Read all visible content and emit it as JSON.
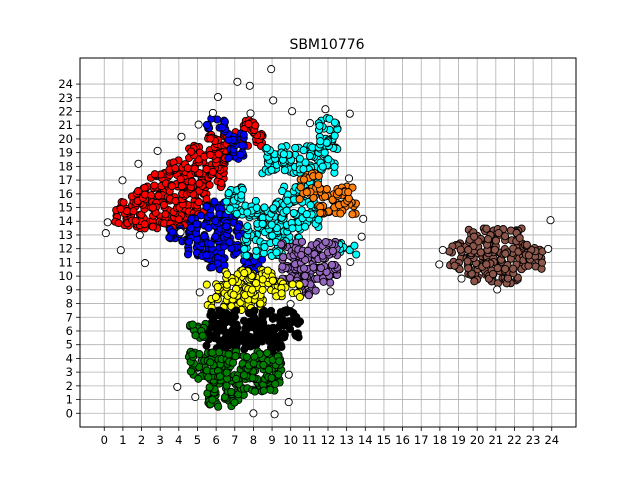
{
  "chart_data": {
    "type": "scatter",
    "title": "SBM10776",
    "xlabel": "",
    "ylabel": "",
    "xlim": [
      -1.3,
      25.3
    ],
    "ylim": [
      -1.0,
      25.9
    ],
    "xticks": [
      0,
      1,
      2,
      3,
      4,
      5,
      6,
      7,
      8,
      9,
      10,
      11,
      12,
      13,
      14,
      15,
      16,
      17,
      18,
      19,
      20,
      21,
      22,
      23,
      24
    ],
    "yticks": [
      0,
      1,
      2,
      3,
      4,
      5,
      6,
      7,
      8,
      9,
      10,
      11,
      12,
      13,
      14,
      15,
      16,
      17,
      18,
      19,
      20,
      21,
      22,
      23,
      24
    ],
    "grid": true,
    "legend": "none",
    "marker_edge_color": "#000000",
    "clusters": [
      {
        "color": "#ff0000",
        "cells": [
          [
            1,
            14
          ],
          [
            1,
            15
          ],
          [
            2,
            14
          ],
          [
            2,
            15
          ],
          [
            2,
            16
          ],
          [
            3,
            14
          ],
          [
            3,
            15
          ],
          [
            3,
            16
          ],
          [
            3,
            17
          ],
          [
            4,
            14
          ],
          [
            4,
            15
          ],
          [
            4,
            16
          ],
          [
            4,
            17
          ],
          [
            4,
            18
          ],
          [
            5,
            15
          ],
          [
            5,
            16
          ],
          [
            5,
            17
          ],
          [
            5,
            18
          ],
          [
            5,
            19
          ],
          [
            6,
            17
          ],
          [
            6,
            18
          ],
          [
            6,
            19
          ],
          [
            6,
            20
          ],
          [
            7,
            20
          ],
          [
            8,
            20
          ],
          [
            8,
            21
          ]
        ]
      },
      {
        "color": "#0000ff",
        "cells": [
          [
            4,
            13
          ],
          [
            5,
            12
          ],
          [
            5,
            13
          ],
          [
            5,
            14
          ],
          [
            6,
            11
          ],
          [
            6,
            12
          ],
          [
            6,
            13
          ],
          [
            6,
            14
          ],
          [
            6,
            15
          ],
          [
            7,
            12
          ],
          [
            7,
            13
          ],
          [
            7,
            14
          ],
          [
            7,
            19
          ],
          [
            7,
            20
          ],
          [
            6,
            21
          ],
          [
            8,
            11
          ]
        ]
      },
      {
        "color": "#00ffff",
        "cells": [
          [
            7,
            15
          ],
          [
            7,
            16
          ],
          [
            8,
            12
          ],
          [
            8,
            13
          ],
          [
            8,
            14
          ],
          [
            8,
            15
          ],
          [
            9,
            12
          ],
          [
            9,
            13
          ],
          [
            9,
            14
          ],
          [
            9,
            15
          ],
          [
            9,
            18
          ],
          [
            9,
            19
          ],
          [
            10,
            13
          ],
          [
            10,
            14
          ],
          [
            10,
            15
          ],
          [
            10,
            16
          ],
          [
            10,
            18
          ],
          [
            10,
            19
          ],
          [
            11,
            14
          ],
          [
            11,
            15
          ],
          [
            11,
            17
          ],
          [
            11,
            18
          ],
          [
            11,
            19
          ],
          [
            12,
            18
          ],
          [
            12,
            19
          ],
          [
            12,
            20
          ],
          [
            12,
            21
          ],
          [
            13,
            12
          ]
        ]
      },
      {
        "color": "#ff7f0e",
        "cells": [
          [
            11,
            16
          ],
          [
            12,
            15
          ],
          [
            12,
            16
          ],
          [
            13,
            15
          ],
          [
            13,
            16
          ],
          [
            11,
            17
          ]
        ]
      },
      {
        "color": "#9467bd",
        "cells": [
          [
            10,
            10
          ],
          [
            10,
            11
          ],
          [
            10,
            12
          ],
          [
            11,
            10
          ],
          [
            11,
            11
          ],
          [
            11,
            12
          ],
          [
            12,
            10
          ],
          [
            12,
            11
          ],
          [
            12,
            12
          ],
          [
            11,
            9
          ]
        ]
      },
      {
        "color": "#ffff00",
        "cells": [
          [
            6,
            8
          ],
          [
            6,
            9
          ],
          [
            7,
            8
          ],
          [
            7,
            9
          ],
          [
            7,
            10
          ],
          [
            8,
            8
          ],
          [
            8,
            9
          ],
          [
            8,
            10
          ],
          [
            9,
            9
          ],
          [
            9,
            10
          ],
          [
            10,
            9
          ]
        ]
      },
      {
        "color": "#000000",
        "cells": [
          [
            6,
            5
          ],
          [
            6,
            6
          ],
          [
            6,
            7
          ],
          [
            7,
            5
          ],
          [
            7,
            6
          ],
          [
            7,
            7
          ],
          [
            8,
            5
          ],
          [
            8,
            6
          ],
          [
            8,
            7
          ],
          [
            9,
            5
          ],
          [
            9,
            6
          ],
          [
            9,
            7
          ],
          [
            10,
            6
          ],
          [
            10,
            7
          ]
        ]
      },
      {
        "color": "#008000",
        "cells": [
          [
            5,
            3
          ],
          [
            5,
            4
          ],
          [
            6,
            1
          ],
          [
            6,
            2
          ],
          [
            6,
            3
          ],
          [
            6,
            4
          ],
          [
            7,
            1
          ],
          [
            7,
            2
          ],
          [
            7,
            3
          ],
          [
            7,
            4
          ],
          [
            8,
            2
          ],
          [
            8,
            3
          ],
          [
            8,
            4
          ],
          [
            9,
            2
          ],
          [
            9,
            3
          ],
          [
            9,
            4
          ],
          [
            5,
            6
          ]
        ]
      },
      {
        "color": "#8c564b",
        "cells": [
          [
            19,
            11
          ],
          [
            19,
            12
          ],
          [
            20,
            10
          ],
          [
            20,
            11
          ],
          [
            20,
            12
          ],
          [
            20,
            13
          ],
          [
            21,
            10
          ],
          [
            21,
            11
          ],
          [
            21,
            12
          ],
          [
            21,
            13
          ],
          [
            22,
            10
          ],
          [
            22,
            11
          ],
          [
            22,
            12
          ],
          [
            22,
            13
          ],
          [
            23,
            11
          ],
          [
            23,
            12
          ]
        ]
      },
      {
        "color": "#ffffff",
        "cells": [
          [
            0,
            13
          ],
          [
            0,
            14
          ],
          [
            1,
            12
          ],
          [
            1,
            17
          ],
          [
            2,
            13
          ],
          [
            2,
            18
          ],
          [
            3,
            19
          ],
          [
            4,
            20
          ],
          [
            5,
            21
          ],
          [
            6,
            23
          ],
          [
            7,
            24
          ],
          [
            8,
            24
          ],
          [
            9,
            25
          ],
          [
            9,
            23
          ],
          [
            10,
            22
          ],
          [
            11,
            21
          ],
          [
            12,
            22
          ],
          [
            13,
            22
          ],
          [
            13,
            17
          ],
          [
            14,
            14
          ],
          [
            14,
            13
          ],
          [
            13,
            11
          ],
          [
            12,
            9
          ],
          [
            10,
            8
          ],
          [
            5,
            9
          ],
          [
            4,
            2
          ],
          [
            5,
            1
          ],
          [
            8,
            0
          ],
          [
            9,
            0
          ],
          [
            10,
            1
          ],
          [
            10,
            3
          ],
          [
            18,
            12
          ],
          [
            18,
            11
          ],
          [
            19,
            10
          ],
          [
            24,
            14
          ],
          [
            24,
            12
          ],
          [
            21,
            9
          ],
          [
            2,
            11
          ],
          [
            4,
            13
          ],
          [
            6,
            22
          ],
          [
            8,
            22
          ]
        ]
      }
    ]
  }
}
